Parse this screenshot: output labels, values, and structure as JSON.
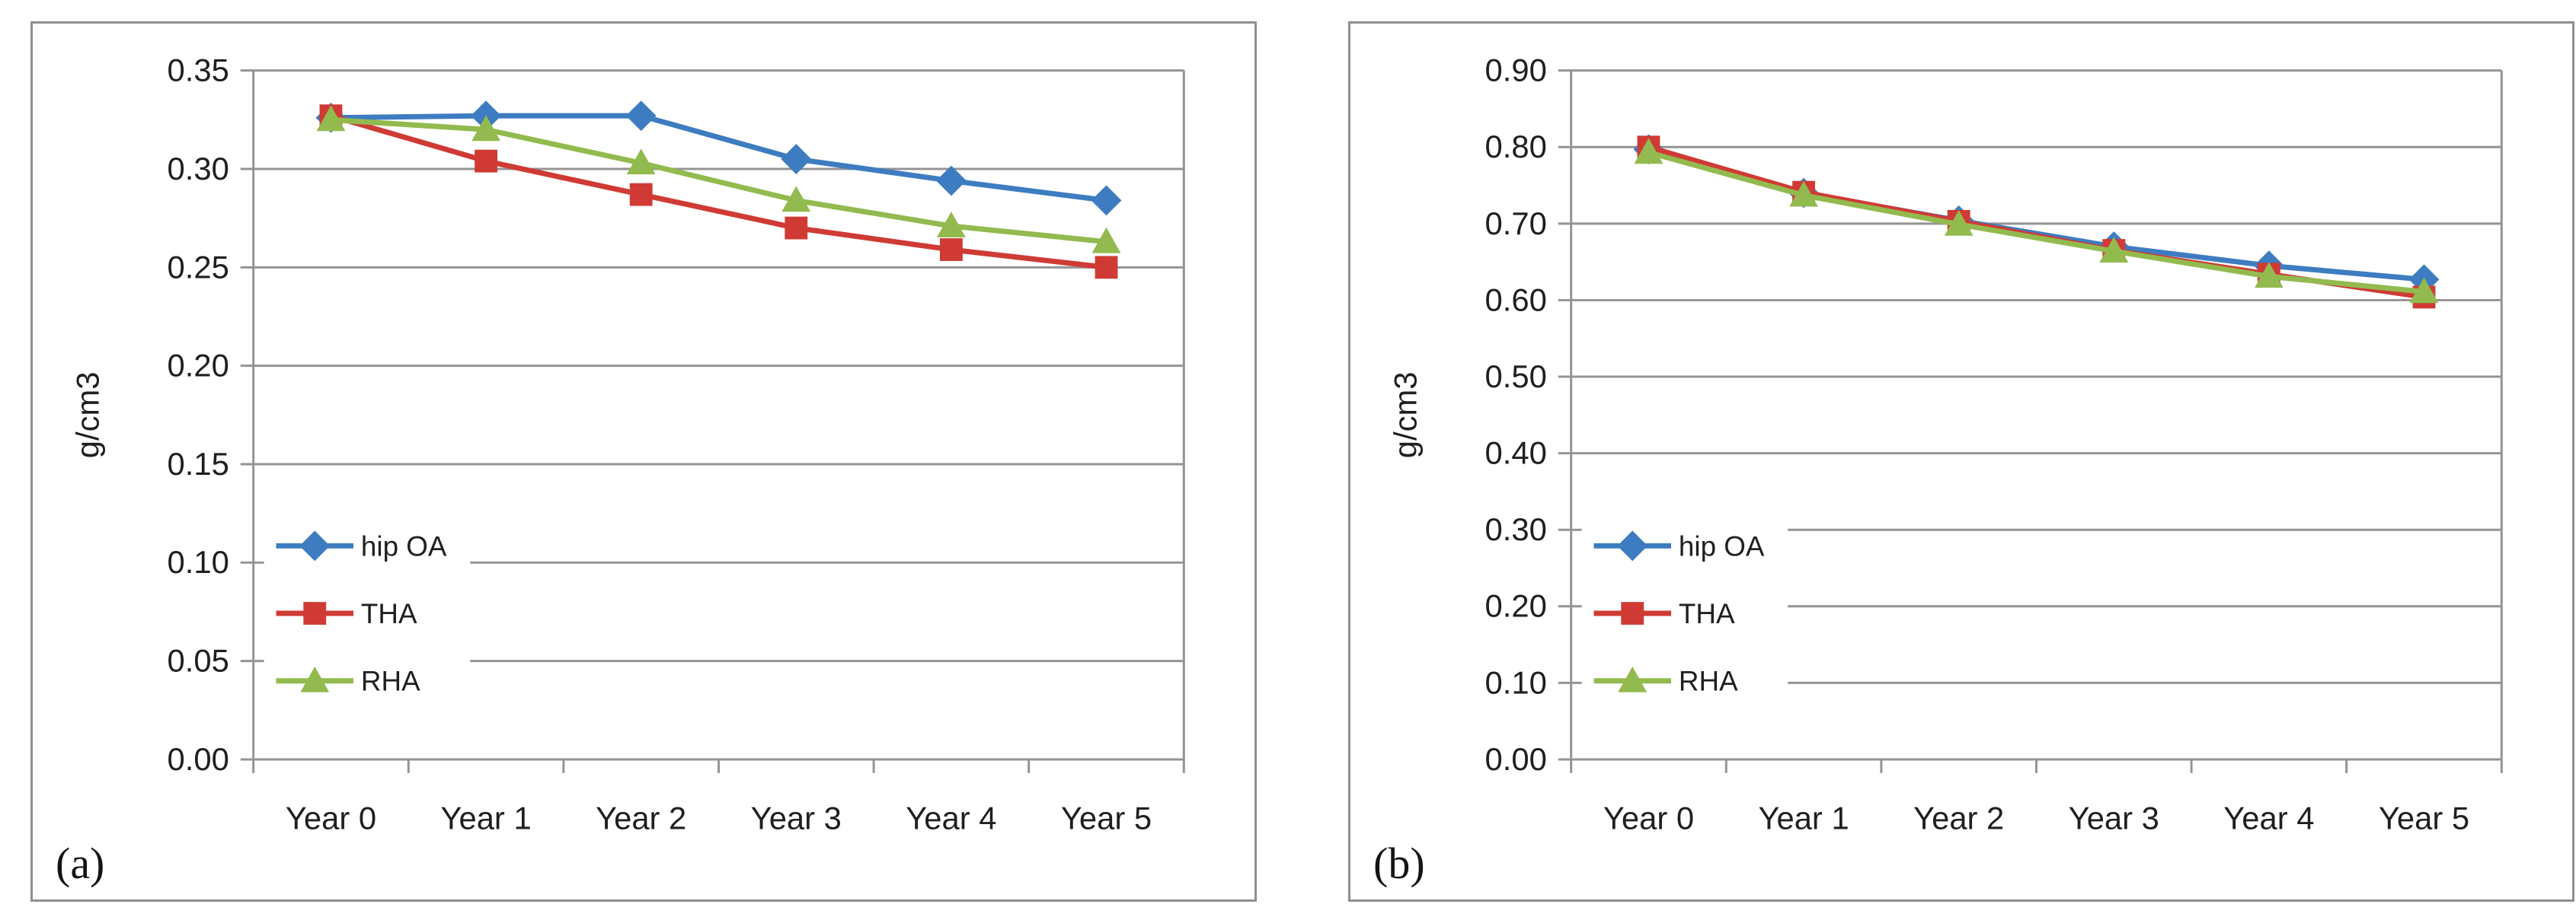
{
  "figure": {
    "background": "#ffffff",
    "panel_a_label": "(a)",
    "panel_b_label": "(b)"
  },
  "colors": {
    "gridline": "#949494",
    "panel_border": "#8f8f8f",
    "text": "#1f1f1f",
    "legend_bg": "#ffffff",
    "series_blue": "#3d7cc0",
    "series_red": "#cf3b34",
    "series_green": "#92ba4e"
  },
  "chart_data": [
    {
      "type": "line",
      "panel_label": "(a)",
      "title": "",
      "xlabel": "",
      "ylabel": "g/cm3",
      "ylim": [
        0,
        0.35
      ],
      "ytick_step": 0.05,
      "ytick_format_decimals": 2,
      "grid": true,
      "legend_position": "inside-left",
      "legend_entries": [
        "hip OA",
        "THA",
        "RHA"
      ],
      "categories": [
        "Year 0",
        "Year 1",
        "Year 2",
        "Year 3",
        "Year 4",
        "Year 5"
      ],
      "series": [
        {
          "name": "hip OA",
          "marker": "diamond",
          "color": "#3d7cc0",
          "values": [
            0.326,
            0.327,
            0.327,
            0.305,
            0.294,
            0.284
          ]
        },
        {
          "name": "THA",
          "marker": "square",
          "color": "#cf3b34",
          "values": [
            0.327,
            0.304,
            0.287,
            0.27,
            0.259,
            0.25
          ]
        },
        {
          "name": "RHA",
          "marker": "triangle",
          "color": "#92ba4e",
          "values": [
            0.325,
            0.32,
            0.303,
            0.284,
            0.271,
            0.263
          ]
        }
      ]
    },
    {
      "type": "line",
      "panel_label": "(b)",
      "title": "",
      "xlabel": "",
      "ylabel": "g/cm3",
      "ylim": [
        0,
        0.9
      ],
      "ytick_step": 0.1,
      "ytick_format_decimals": 2,
      "grid": true,
      "legend_position": "inside-left",
      "legend_entries": [
        "hip OA",
        "THA",
        "RHA"
      ],
      "categories": [
        "Year 0",
        "Year 1",
        "Year 2",
        "Year 3",
        "Year 4",
        "Year 5"
      ],
      "series": [
        {
          "name": "hip OA",
          "marker": "diamond",
          "color": "#3d7cc0",
          "values": [
            0.797,
            0.74,
            0.704,
            0.67,
            0.645,
            0.627
          ]
        },
        {
          "name": "THA",
          "marker": "square",
          "color": "#cf3b34",
          "values": [
            0.8,
            0.741,
            0.703,
            0.665,
            0.634,
            0.604
          ]
        },
        {
          "name": "RHA",
          "marker": "triangle",
          "color": "#92ba4e",
          "values": [
            0.793,
            0.737,
            0.699,
            0.664,
            0.631,
            0.611
          ]
        }
      ]
    }
  ]
}
